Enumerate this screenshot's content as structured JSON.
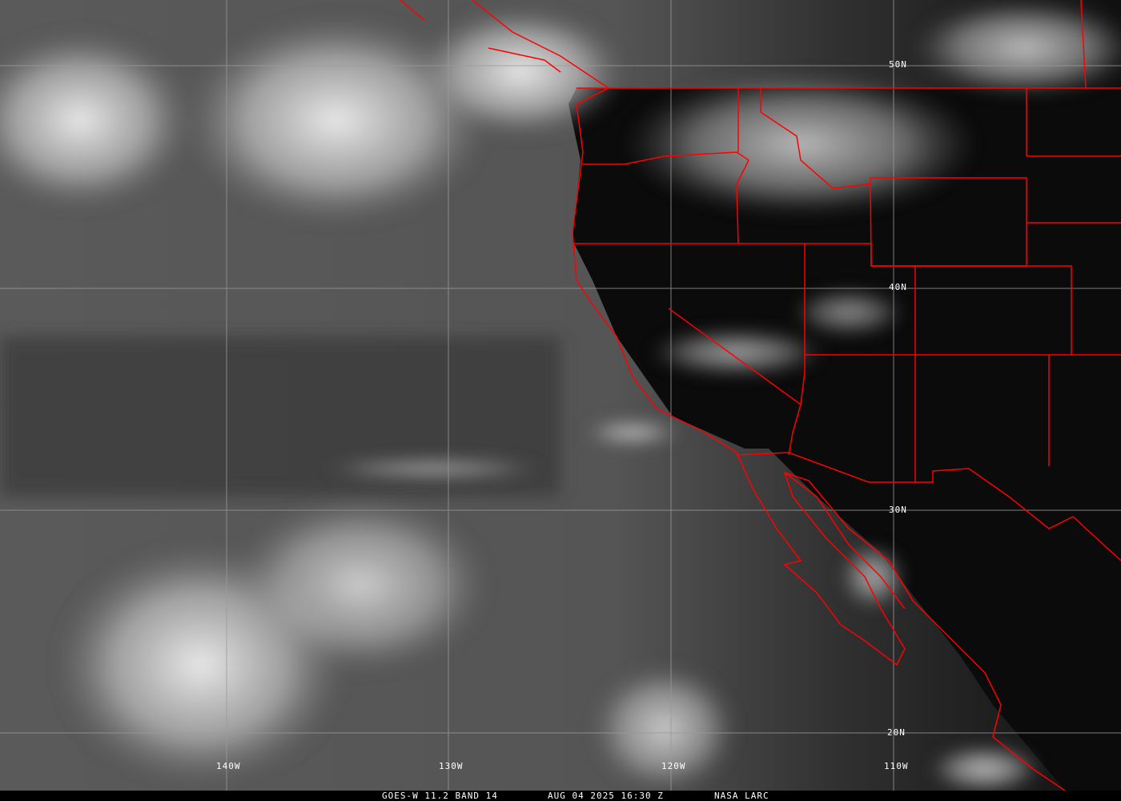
{
  "caption": {
    "satellite": "GOES-W 11.2 BAND 14",
    "datetime": "AUG 04 2025 16:30 Z",
    "source": "NASA LARC"
  },
  "grid": {
    "latitude_labels": [
      "50N",
      "40N",
      "30N",
      "20N"
    ],
    "longitude_labels": [
      "140W",
      "130W",
      "120W",
      "110W"
    ]
  },
  "colors": {
    "boundaries": "#ff0000",
    "grid": "#9a9a9a",
    "labels": "#ffffff"
  }
}
